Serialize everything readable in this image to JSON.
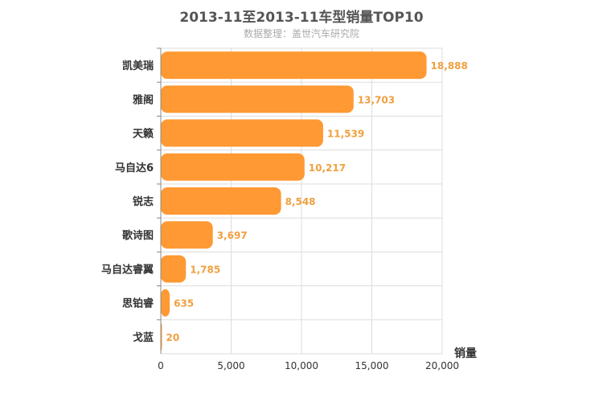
{
  "chart_data": {
    "type": "bar",
    "orientation": "horizontal",
    "title": "2013-11至2013-11车型销量TOP10",
    "subtitle": "数据整理：盖世汽车研究院",
    "xlabel": "销量",
    "ylabel": "",
    "xlim": [
      0,
      20000
    ],
    "x_ticks": [
      "0",
      "5,000",
      "10,000",
      "15,000",
      "20,000"
    ],
    "x_tick_values": [
      0,
      5000,
      10000,
      15000,
      20000
    ],
    "grid": true,
    "categories": [
      "凯美瑞",
      "雅阁",
      "天籁",
      "马自达6",
      "锐志",
      "歌诗图",
      "马自达睿翼",
      "思铂睿",
      "戈蓝"
    ],
    "values": [
      18888,
      13703,
      11539,
      10217,
      8548,
      3697,
      1785,
      635,
      20
    ],
    "value_labels": [
      "18,888",
      "13,703",
      "11,539",
      "10,217",
      "8,548",
      "3,697",
      "1,785",
      "635",
      "20"
    ],
    "bar_color": "#ff9933",
    "label_color": "#f0a040"
  }
}
